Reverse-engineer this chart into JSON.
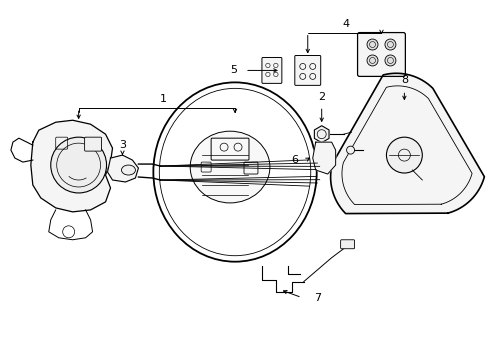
{
  "bg_color": "#ffffff",
  "line_color": "#000000",
  "fig_width": 4.89,
  "fig_height": 3.6,
  "dpi": 100,
  "xlim": [
    0,
    4.89
  ],
  "ylim": [
    0,
    3.6
  ]
}
